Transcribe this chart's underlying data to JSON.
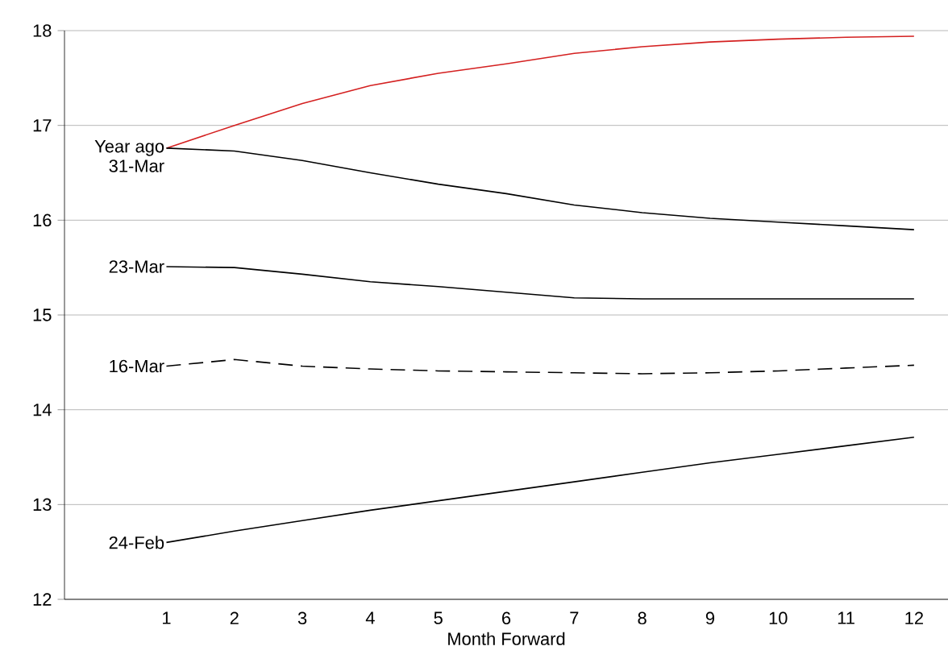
{
  "chart_data": {
    "type": "line",
    "xlabel": "Month Forward",
    "x": [
      1,
      2,
      3,
      4,
      5,
      6,
      7,
      8,
      9,
      10,
      11,
      12
    ],
    "xlim": [
      -0.5,
      12.5
    ],
    "xticks": [
      1,
      2,
      3,
      4,
      5,
      6,
      7,
      8,
      9,
      10,
      11,
      12
    ],
    "ylim": [
      12,
      18
    ],
    "yticks": [
      12,
      13,
      14,
      15,
      16,
      17,
      18
    ],
    "grid": "y",
    "series": [
      {
        "name": "Year ago",
        "color": "#d42020",
        "values": [
          16.76,
          17.0,
          17.23,
          17.42,
          17.55,
          17.65,
          17.76,
          17.83,
          17.88,
          17.91,
          17.93,
          17.94
        ]
      },
      {
        "name": "31-Mar",
        "color": "#000000",
        "values": [
          16.76,
          16.73,
          16.63,
          16.5,
          16.38,
          16.28,
          16.16,
          16.08,
          16.02,
          15.98,
          15.94,
          15.9
        ]
      },
      {
        "name": "23-Mar",
        "color": "#000000",
        "values": [
          15.51,
          15.5,
          15.43,
          15.35,
          15.3,
          15.24,
          15.18,
          15.17,
          15.17,
          15.17,
          15.17,
          15.17
        ]
      },
      {
        "name": "16-Mar",
        "color": "#000000",
        "line_style": "dashed",
        "values": [
          14.46,
          14.53,
          14.46,
          14.43,
          14.41,
          14.4,
          14.39,
          14.38,
          14.39,
          14.41,
          14.44,
          14.47
        ]
      },
      {
        "name": "24-Feb",
        "color": "#000000",
        "values": [
          12.6,
          12.72,
          12.83,
          12.94,
          13.04,
          13.14,
          13.24,
          13.34,
          13.44,
          13.53,
          13.62,
          13.71
        ]
      }
    ]
  }
}
